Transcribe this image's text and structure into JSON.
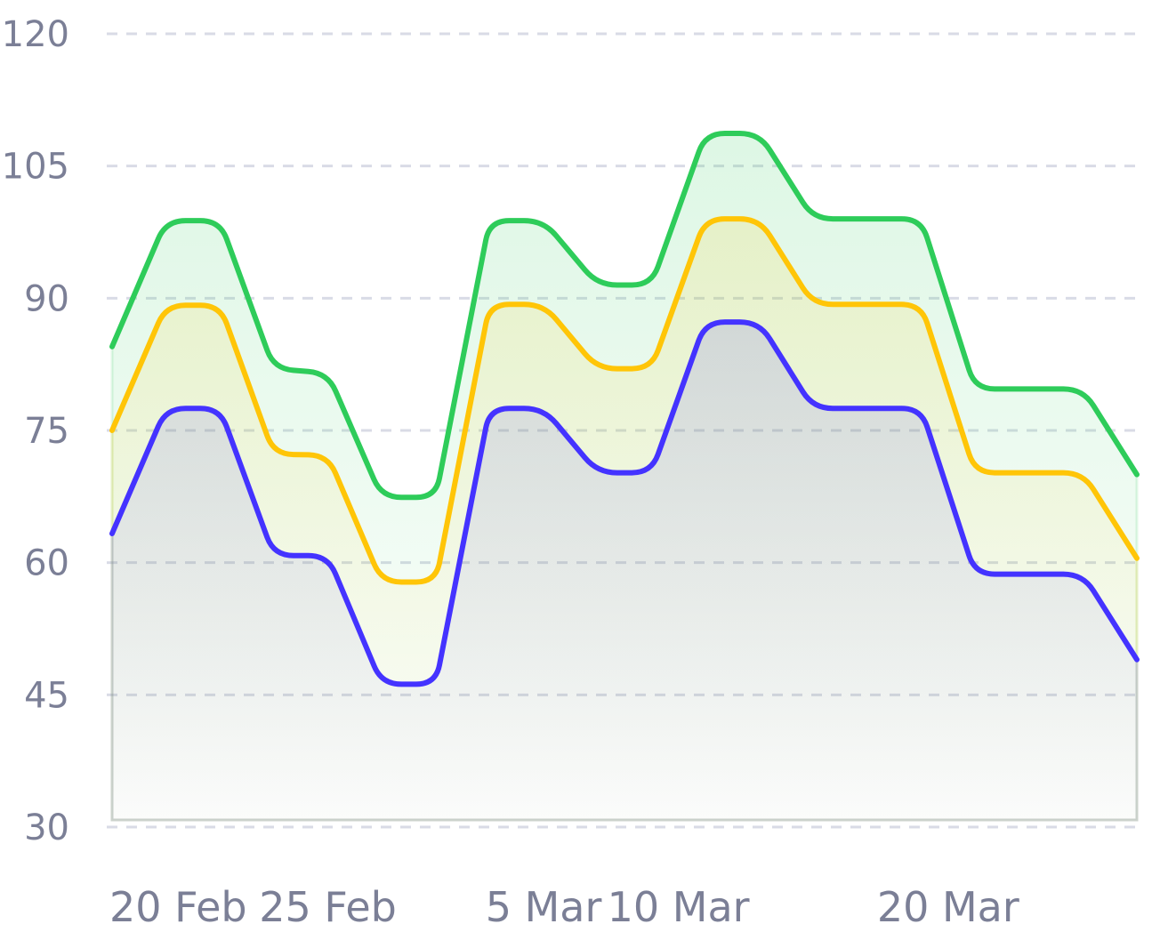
{
  "chart_data": {
    "type": "area",
    "x_dates": [
      "2025-02-17",
      "2025-02-19",
      "2025-02-21",
      "2025-02-23",
      "2025-02-25",
      "2025-02-27",
      "2025-03-01",
      "2025-03-03",
      "2025-03-05",
      "2025-03-07",
      "2025-03-09",
      "2025-03-11",
      "2025-03-13",
      "2025-03-15",
      "2025-03-17",
      "2025-03-19",
      "2025-03-21",
      "2025-03-23",
      "2025-03-25",
      "2025-03-27"
    ],
    "x_tick_labels": [
      "20 Feb",
      "25 Feb",
      "5 Mar",
      "10 Mar",
      "20 Mar"
    ],
    "y_ticks": [
      120,
      105,
      90,
      75,
      60,
      45,
      30
    ],
    "ylim": [
      30,
      120
    ],
    "grid": true,
    "series": [
      {
        "color": "#2ecc5a",
        "values": [
          84.5,
          98.8,
          98.8,
          82.0,
          81.5,
          67.4,
          67.4,
          98.8,
          98.8,
          91.5,
          91.5,
          108.7,
          108.7,
          99.0,
          99.0,
          99.0,
          79.7,
          79.7,
          79.7,
          70.0
        ]
      },
      {
        "color": "#ffc507",
        "values": [
          75.0,
          89.2,
          89.2,
          72.3,
          72.2,
          57.8,
          57.8,
          89.3,
          89.3,
          82.0,
          82.0,
          99.0,
          99.0,
          89.3,
          89.3,
          89.3,
          70.2,
          70.2,
          70.2,
          60.5
        ]
      },
      {
        "color": "#4433ff",
        "values": [
          63.3,
          77.5,
          77.5,
          60.8,
          60.8,
          46.2,
          46.2,
          77.5,
          77.5,
          70.2,
          70.2,
          87.3,
          87.3,
          77.5,
          77.5,
          77.5,
          58.7,
          58.7,
          58.7,
          49.0
        ]
      }
    ]
  }
}
